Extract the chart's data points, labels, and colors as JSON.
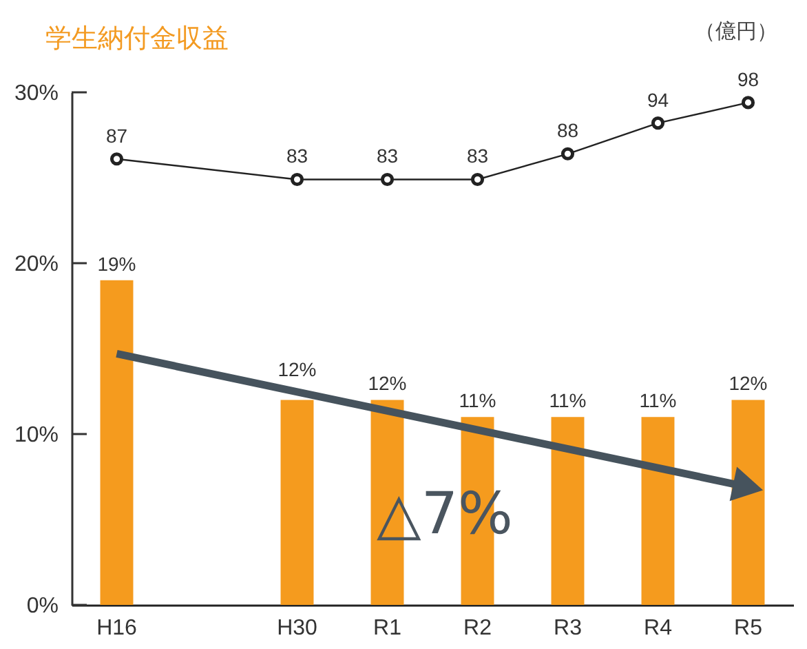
{
  "chart_data": {
    "type": "bar",
    "title": "学生納付金収益",
    "y2label": "（億円）",
    "categories": [
      "H16",
      null,
      "H30",
      "R1",
      "R2",
      "R3",
      "R4",
      "R5"
    ],
    "series": [
      {
        "color": "#f59b1e",
        "values": [
          19,
          null,
          12,
          12,
          11,
          11,
          11,
          12
        ],
        "value_labels": [
          "19%",
          null,
          "12%",
          "12%",
          "11%",
          "11%",
          "11%",
          "12%"
        ]
      },
      {
        "type": "line",
        "axis": "y2",
        "color": "#222222",
        "marker": "circle",
        "values": [
          87,
          null,
          83,
          83,
          83,
          88,
          94,
          98
        ],
        "value_labels": [
          "87",
          null,
          "83",
          "83",
          "83",
          "88",
          "94",
          "98"
        ]
      },
      {
        "type": "line",
        "color": "#46535d",
        "marker": "triangle",
        "values": [
          14.7,
          null,
          null,
          null,
          null,
          null,
          null,
          6.9
        ]
      }
    ],
    "ylim": [
      0,
      30
    ],
    "yticks": [
      {
        "value": 0,
        "label": "0%"
      },
      {
        "value": 10,
        "label": "10%"
      },
      {
        "value": 20,
        "label": "20%"
      },
      {
        "value": 30,
        "label": "30%"
      }
    ],
    "y2lim": [
      0,
      100
    ],
    "annotations": [
      "△7%"
    ]
  }
}
